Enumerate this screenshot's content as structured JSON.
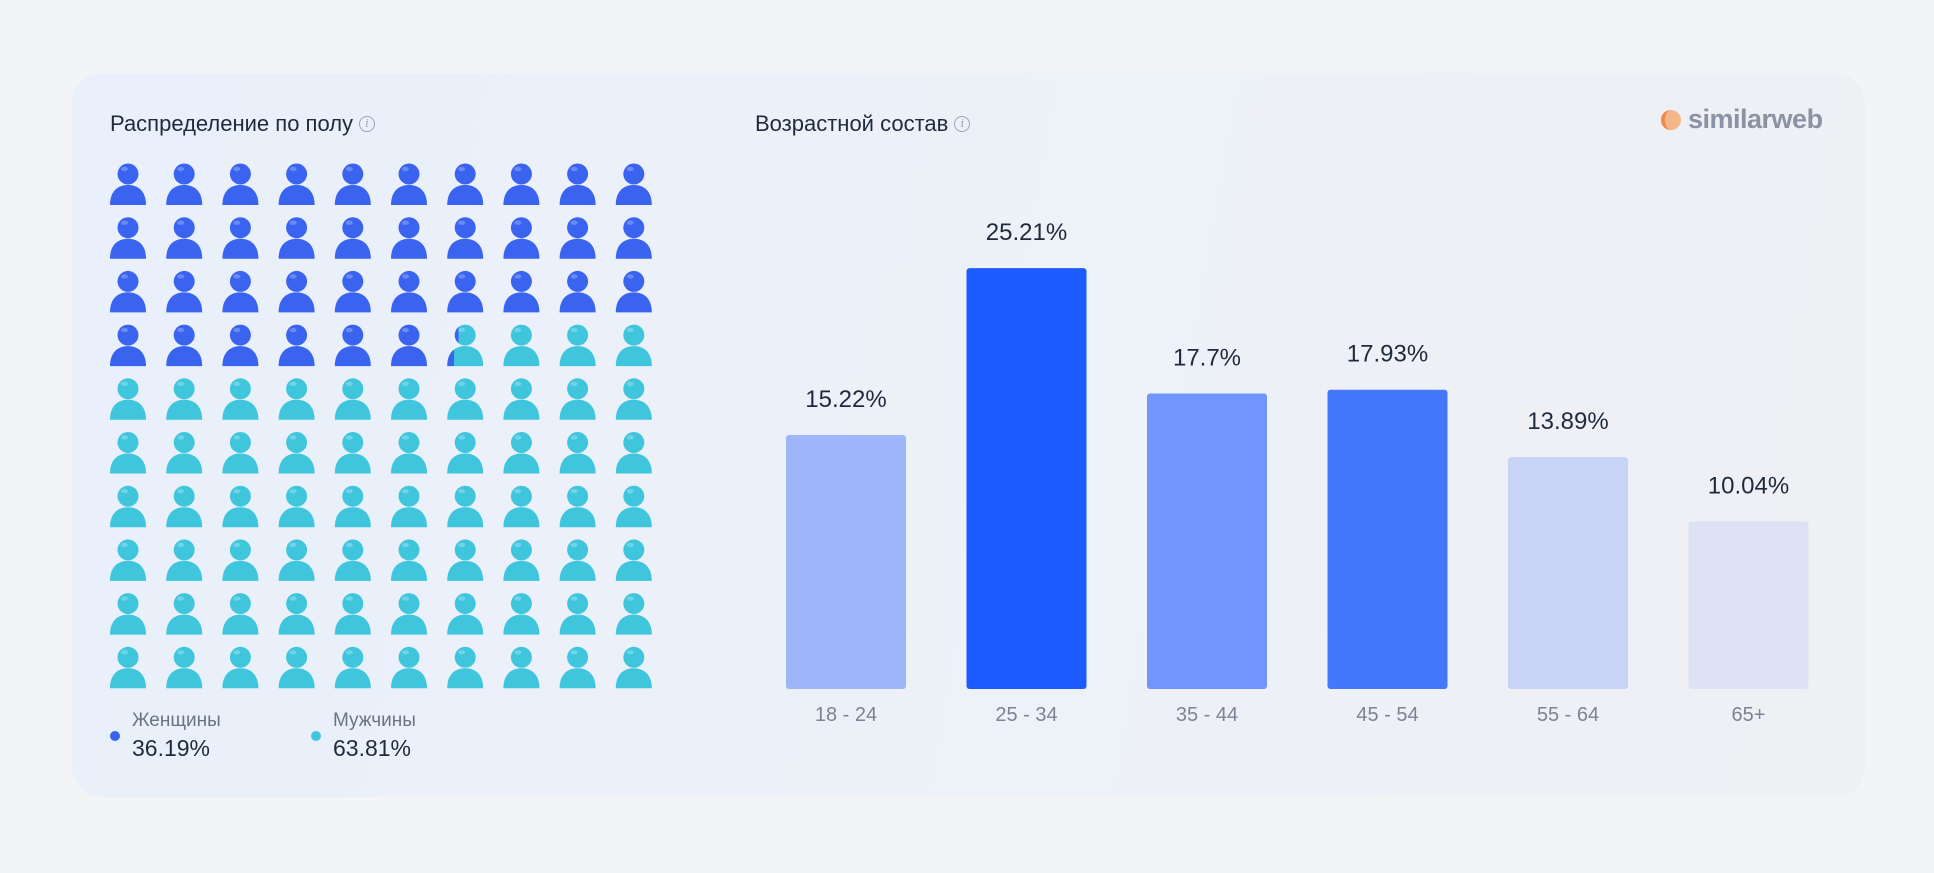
{
  "gender": {
    "title": "Распределение по полу",
    "women_label": "Женщины",
    "women_value": "36.19%",
    "men_label": "Мужчины",
    "men_value": "63.81%"
  },
  "age": {
    "title": "Возрастной состав"
  },
  "brand": {
    "name": "similarweb"
  },
  "colors": {
    "women": "#3a63f0",
    "men": "#3fc6dd",
    "bars": [
      "#9db6fa",
      "#1b5bff",
      "#7096fb",
      "#4577fc",
      "#c8d4f6",
      "#dde3f5"
    ]
  },
  "chart_data": [
    {
      "type": "pictogram",
      "title": "Распределение по полу",
      "total_icons": 100,
      "series": [
        {
          "name": "Женщины",
          "value": 36.19,
          "label": "36.19%"
        },
        {
          "name": "Мужчины",
          "value": 63.81,
          "label": "63.81%"
        }
      ]
    },
    {
      "type": "bar",
      "title": "Возрастной состав",
      "categories": [
        "18 - 24",
        "25 - 34",
        "35 - 44",
        "45 - 54",
        "55 - 64",
        "65+"
      ],
      "values": [
        15.22,
        25.21,
        17.7,
        17.93,
        13.89,
        10.04
      ],
      "value_labels": [
        "15.22%",
        "25.21%",
        "17.7%",
        "17.93%",
        "13.89%",
        "10.04%"
      ],
      "ylim": [
        0,
        26
      ],
      "grid": false
    }
  ]
}
